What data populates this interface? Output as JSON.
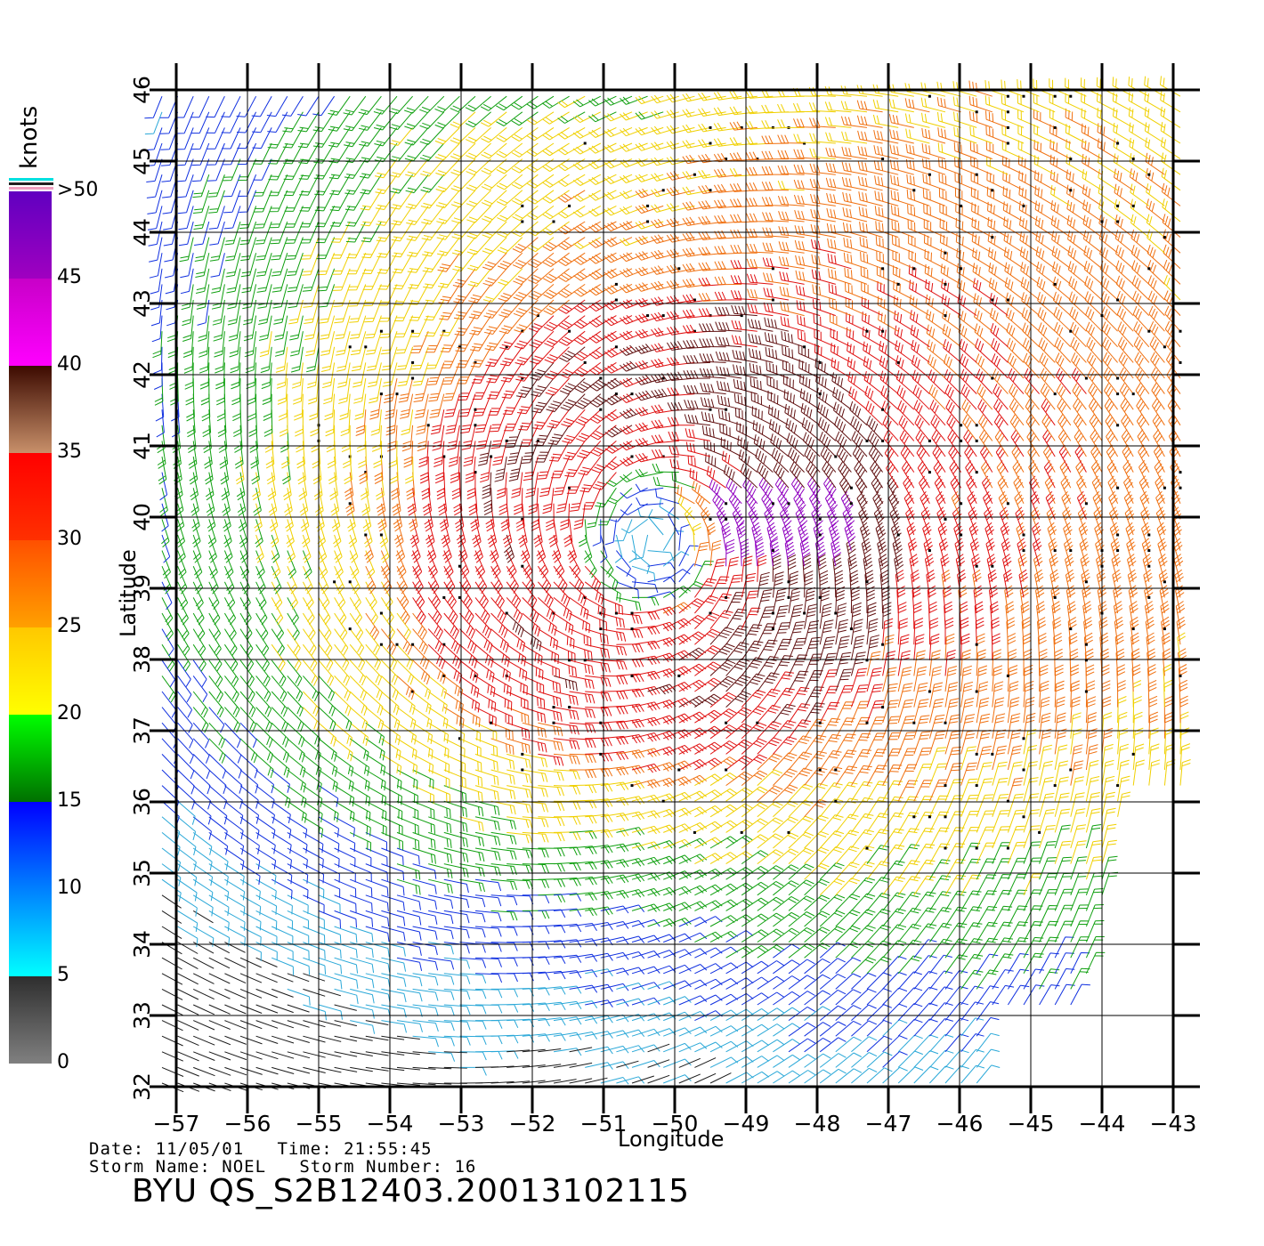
{
  "map": {
    "lon_range": [
      -57,
      -43
    ],
    "lat_range": [
      32,
      46
    ],
    "x_ticks": [
      "-57",
      "-56",
      "-55",
      "-54",
      "-53",
      "-52",
      "-51",
      "-50",
      "-49",
      "-48",
      "-47",
      "-46",
      "-45",
      "-44",
      "-43"
    ],
    "y_ticks": [
      "32",
      "33",
      "34",
      "35",
      "36",
      "37",
      "38",
      "39",
      "40",
      "41",
      "42",
      "43",
      "44",
      "45",
      "46"
    ],
    "xlabel": "Longitude",
    "ylabel": "Latitude",
    "storm_center": {
      "lon": -50.3,
      "lat": 39.7
    },
    "wind_field": "cyclonic wind barbs; strongest winds (35-50 knots) northeast and east of center, weak winds near center, gap in coverage southeast"
  },
  "colorbar": {
    "units": "knots",
    "labels": [
      "0",
      "5",
      "10",
      "15",
      "20",
      "25",
      "30",
      "35",
      "40",
      "45",
      ">50"
    ],
    "bands": [
      {
        "from": 0,
        "to": 5,
        "colors": [
          "#808080",
          "#2e2e2e"
        ]
      },
      {
        "from": 5,
        "to": 10,
        "colors": [
          "#00ffff",
          "#0080ff"
        ]
      },
      {
        "from": 10,
        "to": 15,
        "colors": [
          "#0080ff",
          "#0000ff"
        ]
      },
      {
        "from": 15,
        "to": 20,
        "colors": [
          "#007000",
          "#00ff00"
        ]
      },
      {
        "from": 20,
        "to": 25,
        "colors": [
          "#ffff00",
          "#ffc800"
        ]
      },
      {
        "from": 25,
        "to": 30,
        "colors": [
          "#ffa000",
          "#ff5000"
        ]
      },
      {
        "from": 30,
        "to": 35,
        "colors": [
          "#ff3000",
          "#ff0000"
        ]
      },
      {
        "from": 35,
        "to": 40,
        "colors": [
          "#c8906a",
          "#3c0a00"
        ]
      },
      {
        "from": 40,
        "to": 45,
        "colors": [
          "#ff00ff",
          "#c800c8"
        ]
      },
      {
        "from": 45,
        "to": 50,
        "colors": [
          "#a000c0",
          "#6000c0"
        ]
      }
    ],
    "speed_colors": {
      "calm": "#1a1a1a",
      "light": "#2aa8d8",
      "blue": "#1030e0",
      "green": "#10a010",
      "yellow": "#f0d000",
      "orange": "#f07010",
      "red": "#e01010",
      "brown": "#601010",
      "purple": "#9000c0"
    }
  },
  "meta": {
    "date_line": "Date: 11/05/01   Time: 21:55:45",
    "storm_line": "Storm Name: NOEL   Storm Number: 16",
    "title": "BYU QS_S2B12403.20013102115"
  }
}
